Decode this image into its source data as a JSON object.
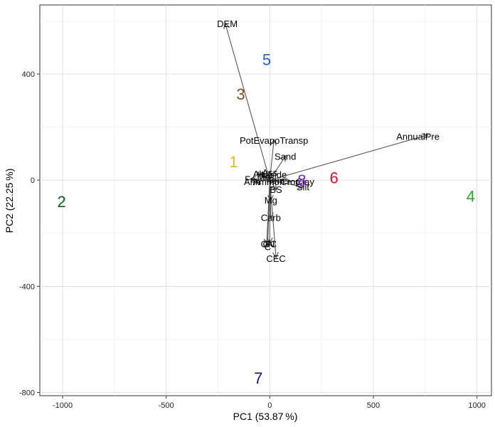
{
  "chart_data": {
    "type": "scatter",
    "subtype": "pca-biplot",
    "title": "",
    "xlabel": "PC1 (53.87 %)",
    "ylabel": "PC2 (22.25 %)",
    "xlim": [
      -1110,
      1070
    ],
    "ylim": [
      -812,
      660
    ],
    "x_ticks": [
      -1000,
      -500,
      0,
      500,
      1000
    ],
    "y_ticks": [
      -800,
      -400,
      0,
      400
    ],
    "x_minor_ticks": [
      -750,
      -250,
      250,
      750
    ],
    "y_minor_ticks": [
      -600,
      -200,
      200,
      600
    ],
    "grid": true,
    "observations": [
      {
        "label": "1",
        "x": -175,
        "y": 70,
        "color": "#e6b820"
      },
      {
        "label": "2",
        "x": -1005,
        "y": -80,
        "color": "#0b5e16"
      },
      {
        "label": "3",
        "x": -140,
        "y": 325,
        "color": "#8b4a1e"
      },
      {
        "label": "4",
        "x": 970,
        "y": -60,
        "color": "#2ba52b"
      },
      {
        "label": "5",
        "x": -15,
        "y": 455,
        "color": "#1f63c8"
      },
      {
        "label": "6",
        "x": 310,
        "y": 10,
        "color": "#d8112a"
      },
      {
        "label": "7",
        "x": -55,
        "y": -745,
        "color": "#12127e"
      },
      {
        "label": "8",
        "x": 155,
        "y": 0,
        "color": "#7d2bd0"
      }
    ],
    "loadings": [
      {
        "label": "DEM",
        "x": -215,
        "y": 590,
        "lx": -205,
        "ly": 590
      },
      {
        "label": "AnnualPre",
        "x": 760,
        "y": 170,
        "lx": 715,
        "ly": 165
      },
      {
        "label": "PotEvapoTransp",
        "x": 20,
        "y": 150,
        "lx": 20,
        "ly": 150
      },
      {
        "label": "Sand",
        "x": 75,
        "y": 90,
        "lx": 75,
        "ly": 90
      },
      {
        "label": "Silt",
        "x": 160,
        "y": -25,
        "lx": 160,
        "ly": -25
      },
      {
        "label": "Clay",
        "x": 170,
        "y": -5,
        "lx": 170,
        "ly": -5
      },
      {
        "label": "BS",
        "x": 30,
        "y": -35,
        "lx": 30,
        "ly": -35
      },
      {
        "label": "Mg",
        "x": 5,
        "y": -75,
        "lx": 5,
        "ly": -75
      },
      {
        "label": "Carb",
        "x": 5,
        "y": -140,
        "lx": 5,
        "ly": -140
      },
      {
        "label": "ON",
        "x": -15,
        "y": -240,
        "lx": -10,
        "ly": -240
      },
      {
        "label": "OC",
        "x": 0,
        "y": -235,
        "lx": 0,
        "ly": -240
      },
      {
        "label": "C",
        "x": -10,
        "y": -245,
        "lx": -10,
        "ly": -250
      },
      {
        "label": "CEC",
        "x": 30,
        "y": -290,
        "lx": 30,
        "ly": -295
      },
      {
        "label": "Alt",
        "x": -45,
        "y": 25,
        "lx": -55,
        "ly": 25
      },
      {
        "label": "Hillside",
        "x": 10,
        "y": 20,
        "lx": 10,
        "ly": 22
      },
      {
        "label": "Ass",
        "x": 0,
        "y": 30,
        "lx": 0,
        "ly": 30
      },
      {
        "label": "Fe",
        "x": -90,
        "y": 5,
        "lx": -95,
        "ly": 5
      },
      {
        "label": "Ann",
        "x": -65,
        "y": -5,
        "lx": -85,
        "ly": -5
      },
      {
        "label": "Ammon",
        "x": -10,
        "y": -5,
        "lx": -5,
        "ly": -5
      },
      {
        "label": "Tem",
        "x": 30,
        "y": 0,
        "lx": 30,
        "ly": 0
      },
      {
        "label": "Crop",
        "x": 100,
        "y": -5,
        "lx": 100,
        "ly": -5
      },
      {
        "label": "Mo",
        "x": -30,
        "y": 15,
        "lx": -30,
        "ly": 15
      }
    ]
  }
}
